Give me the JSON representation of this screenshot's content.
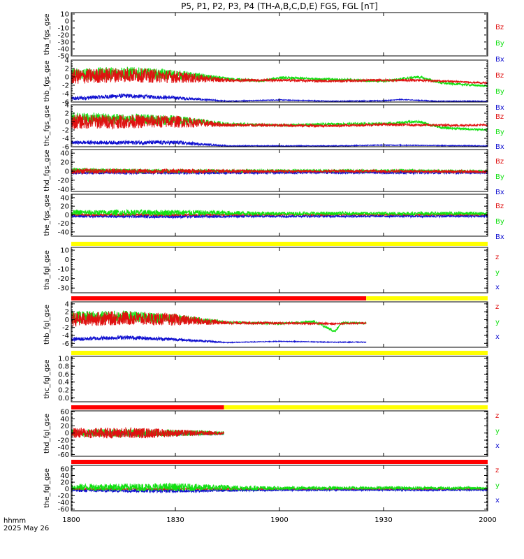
{
  "colors": {
    "x": "#1010d0",
    "y": "#10e010",
    "z": "#e01010",
    "bar_red": "#ff0000",
    "bar_yellow": "#ffff00",
    "axis": "#000000"
  },
  "chart_data": {
    "type": "line",
    "title": "P5, P1, P2, P3, P4 (TH-A,B,C,D,E) FGS, FGL [nT]",
    "x_ticks": [
      "1800",
      "1830",
      "1900",
      "1930",
      "2000"
    ],
    "x_range_min": [
      0,
      120
    ],
    "footer": {
      "line1": "hhmm",
      "line2": "2025 May 26"
    },
    "panels": [
      {
        "id": "tha_fgs",
        "ylabel": "tha_fgs_gse",
        "yticks": [
          10,
          0,
          -10,
          -20,
          -30,
          -40,
          -50
        ],
        "ylim": [
          -50,
          12
        ],
        "legend": [
          "Bz",
          "By",
          "Bx"
        ],
        "note": "no data",
        "series": []
      },
      {
        "id": "thb_fgs",
        "ylabel": "thb_fgs_gse",
        "yticks": [
          4,
          2,
          0,
          -2,
          -4,
          -6
        ],
        "ylim": [
          -6,
          4
        ],
        "legend": [
          "Bz",
          "By",
          "Bx"
        ],
        "series": [
          {
            "comp": "x",
            "samples": [
              [
                0,
                -5.2
              ],
              [
                15,
                -4.5
              ],
              [
                30,
                -5.0
              ],
              [
                45,
                -5.8
              ],
              [
                60,
                -5.5
              ],
              [
                75,
                -5.8
              ],
              [
                90,
                -5.7
              ],
              [
                95,
                -5.4
              ],
              [
                105,
                -5.8
              ],
              [
                120,
                -5.8
              ]
            ],
            "noise": [
              0.5,
              0.5,
              0.4,
              0.1,
              0.1,
              0.1,
              0.1,
              0.1,
              0.1,
              0.1
            ]
          },
          {
            "comp": "y",
            "samples": [
              [
                0,
                0.5
              ],
              [
                15,
                1.0
              ],
              [
                30,
                0.5
              ],
              [
                45,
                -0.5
              ],
              [
                55,
                -1.0
              ],
              [
                60,
                -0.2
              ],
              [
                75,
                -0.6
              ],
              [
                90,
                -1.0
              ],
              [
                100,
                0.0
              ],
              [
                107,
                -1.5
              ],
              [
                120,
                -2.2
              ]
            ],
            "noise": [
              1.5,
              1.5,
              1.2,
              0.4,
              0.3,
              0.3,
              0.3,
              0.3,
              0.3,
              0.3,
              0.2
            ]
          },
          {
            "comp": "z",
            "samples": [
              [
                0,
                0.0
              ],
              [
                15,
                0.5
              ],
              [
                30,
                0.0
              ],
              [
                45,
                -0.8
              ],
              [
                60,
                -0.8
              ],
              [
                75,
                -1.0
              ],
              [
                90,
                -0.8
              ],
              [
                100,
                -0.8
              ],
              [
                110,
                -1.1
              ],
              [
                120,
                -1.5
              ]
            ],
            "noise": [
              1.8,
              1.8,
              1.5,
              0.4,
              0.3,
              0.3,
              0.3,
              0.3,
              0.2,
              0.2
            ]
          }
        ]
      },
      {
        "id": "thc_fgs",
        "ylabel": "thc_fgs_gse",
        "yticks": [
          4,
          2,
          0,
          -2,
          -4,
          -6
        ],
        "ylim": [
          -6,
          4
        ],
        "legend": [
          "Bz",
          "By",
          "Bx"
        ],
        "series": [
          {
            "comp": "x",
            "samples": [
              [
                0,
                -5.0
              ],
              [
                30,
                -5.0
              ],
              [
                45,
                -5.8
              ],
              [
                75,
                -5.8
              ],
              [
                90,
                -5.6
              ],
              [
                120,
                -5.8
              ]
            ],
            "noise": [
              0.4,
              0.5,
              0.1,
              0.1,
              0.1,
              0.1
            ]
          },
          {
            "comp": "y",
            "samples": [
              [
                0,
                0.8
              ],
              [
                30,
                0.3
              ],
              [
                45,
                -0.6
              ],
              [
                60,
                -0.9
              ],
              [
                75,
                -0.6
              ],
              [
                90,
                -0.5
              ],
              [
                100,
                0.0
              ],
              [
                107,
                -1.5
              ],
              [
                120,
                -2.0
              ]
            ],
            "noise": [
              1.5,
              1.2,
              0.4,
              0.3,
              0.3,
              0.3,
              0.3,
              0.3,
              0.2
            ]
          },
          {
            "comp": "z",
            "samples": [
              [
                0,
                0.0
              ],
              [
                30,
                0.0
              ],
              [
                45,
                -0.8
              ],
              [
                75,
                -1.0
              ],
              [
                90,
                -0.7
              ],
              [
                110,
                -0.9
              ],
              [
                120,
                -0.8
              ]
            ],
            "noise": [
              1.8,
              1.5,
              0.4,
              0.3,
              0.3,
              0.3,
              0.2
            ]
          }
        ]
      },
      {
        "id": "thd_fgs",
        "ylabel": "thd_fgs_gse",
        "yticks": [
          40,
          20,
          0,
          -20,
          -40
        ],
        "ylim": [
          -45,
          48
        ],
        "legend": [
          "Bz",
          "By",
          "Bx"
        ],
        "series": [
          {
            "comp": "x",
            "samples": [
              [
                0,
                -3
              ],
              [
                30,
                -3
              ],
              [
                60,
                -3
              ],
              [
                90,
                -3
              ],
              [
                120,
                -3
              ]
            ],
            "noise": [
              4,
              4,
              3,
              3,
              3
            ]
          },
          {
            "comp": "y",
            "samples": [
              [
                0,
                2
              ],
              [
                30,
                0
              ],
              [
                60,
                1
              ],
              [
                90,
                1
              ],
              [
                120,
                0
              ]
            ],
            "noise": [
              5,
              4,
              3,
              3,
              3
            ]
          },
          {
            "comp": "z",
            "samples": [
              [
                0,
                0
              ],
              [
                30,
                0
              ],
              [
                60,
                0
              ],
              [
                90,
                0
              ],
              [
                120,
                -1
              ]
            ],
            "noise": [
              6,
              5,
              3,
              3,
              3
            ]
          }
        ]
      },
      {
        "id": "the_fgs",
        "ylabel": "the_fgs_gse",
        "yticks": [
          40,
          20,
          0,
          -20,
          -40
        ],
        "ylim": [
          -50,
          48
        ],
        "legend": [
          "Bz",
          "By",
          "Bx"
        ],
        "series": [
          {
            "comp": "x",
            "samples": [
              [
                0,
                -3
              ],
              [
                30,
                -4
              ],
              [
                60,
                -3
              ],
              [
                90,
                -3
              ],
              [
                120,
                -3
              ]
            ],
            "noise": [
              3,
              4,
              3,
              3,
              3
            ]
          },
          {
            "comp": "z",
            "samples": [
              [
                0,
                0
              ],
              [
                30,
                0
              ],
              [
                60,
                0
              ],
              [
                90,
                0
              ],
              [
                120,
                0
              ]
            ],
            "noise": [
              2,
              2,
              1,
              1,
              1
            ]
          },
          {
            "comp": "y",
            "samples": [
              [
                0,
                5
              ],
              [
                30,
                5
              ],
              [
                60,
                3
              ],
              [
                90,
                3
              ],
              [
                120,
                3
              ]
            ],
            "noise": [
              6,
              7,
              4,
              4,
              4
            ]
          }
        ]
      },
      {
        "id": "tha_fgl",
        "ylabel": "tha_fgl_gse",
        "yticks": [
          10,
          0,
          -10,
          -20,
          -30
        ],
        "ylim": [
          -35,
          13
        ],
        "legend": [
          "z",
          "y",
          "x"
        ],
        "note": "no data",
        "bar": [
          [
            "yellow",
            0,
            120
          ]
        ],
        "series": []
      },
      {
        "id": "thb_fgl",
        "ylabel": "thb_fgl_gse",
        "yticks": [
          4,
          2,
          0,
          -2,
          -4,
          -6
        ],
        "ylim": [
          -7,
          4.5
        ],
        "legend": [
          "z",
          "y",
          "x"
        ],
        "bar": [
          [
            "red",
            0,
            85
          ],
          [
            "yellow",
            85,
            120
          ]
        ],
        "series": [
          {
            "comp": "x",
            "samples": [
              [
                0,
                -5.0
              ],
              [
                15,
                -4.5
              ],
              [
                30,
                -5.0
              ],
              [
                45,
                -5.8
              ],
              [
                60,
                -5.5
              ],
              [
                75,
                -5.7
              ],
              [
                85,
                -5.7
              ]
            ],
            "noise": [
              0.5,
              0.5,
              0.4,
              0.1,
              0.1,
              0.1,
              0.1
            ]
          },
          {
            "comp": "y",
            "samples": [
              [
                0,
                0.6
              ],
              [
                15,
                0.8
              ],
              [
                30,
                0.3
              ],
              [
                45,
                -0.7
              ],
              [
                60,
                -1.0
              ],
              [
                70,
                -0.5
              ],
              [
                76,
                -3.0
              ],
              [
                78,
                -0.8
              ],
              [
                85,
                -0.9
              ]
            ],
            "noise": [
              1.5,
              1.5,
              1.2,
              0.3,
              0.3,
              0.3,
              0.3,
              0.3,
              0.2
            ]
          },
          {
            "comp": "z",
            "samples": [
              [
                0,
                0.0
              ],
              [
                15,
                0.4
              ],
              [
                30,
                0.0
              ],
              [
                45,
                -0.8
              ],
              [
                60,
                -0.9
              ],
              [
                75,
                -1.0
              ],
              [
                85,
                -0.9
              ]
            ],
            "noise": [
              1.8,
              1.8,
              1.5,
              0.4,
              0.3,
              0.3,
              0.2
            ]
          }
        ]
      },
      {
        "id": "thc_fgl",
        "ylabel": "thc_fgl_gse",
        "yticks": [
          1.0,
          0.8,
          0.6,
          0.4,
          0.2,
          0.0
        ],
        "ylim": [
          -0.1,
          1.05
        ],
        "legend": [],
        "note": "no data",
        "bar": [
          [
            "yellow",
            0,
            120
          ]
        ],
        "series": []
      },
      {
        "id": "thd_fgl",
        "ylabel": "thd_fgl_gse",
        "yticks": [
          60,
          40,
          20,
          0,
          -20,
          -40,
          -60
        ],
        "ylim": [
          -65,
          62
        ],
        "legend": [
          "z",
          "y",
          "x"
        ],
        "bar": [
          [
            "red",
            0,
            44
          ],
          [
            "yellow",
            44,
            120
          ]
        ],
        "series": [
          {
            "comp": "x",
            "samples": [
              [
                0,
                0
              ],
              [
                20,
                -2
              ],
              [
                44,
                -2
              ]
            ],
            "noise": [
              6,
              6,
              3
            ]
          },
          {
            "comp": "y",
            "samples": [
              [
                0,
                0
              ],
              [
                20,
                0
              ],
              [
                44,
                0
              ]
            ],
            "noise": [
              10,
              12,
              5
            ]
          },
          {
            "comp": "z",
            "samples": [
              [
                0,
                0
              ],
              [
                20,
                0
              ],
              [
                44,
                0
              ]
            ],
            "noise": [
              15,
              15,
              4
            ]
          }
        ]
      },
      {
        "id": "the_fgl",
        "ylabel": "the_fgl_gse",
        "yticks": [
          60,
          40,
          20,
          0,
          -20,
          -40,
          -60
        ],
        "ylim": [
          -65,
          70
        ],
        "legend": [
          "z",
          "y",
          "x"
        ],
        "bar": [
          [
            "red",
            0,
            120
          ]
        ],
        "series": [
          {
            "comp": "x",
            "samples": [
              [
                0,
                -4
              ],
              [
                30,
                -5
              ],
              [
                60,
                -3
              ],
              [
                90,
                -3
              ],
              [
                120,
                -3
              ]
            ],
            "noise": [
              5,
              6,
              3,
              3,
              3
            ]
          },
          {
            "comp": "z",
            "samples": [
              [
                0,
                0
              ],
              [
                30,
                0
              ],
              [
                60,
                0
              ],
              [
                90,
                0
              ],
              [
                120,
                0
              ]
            ],
            "noise": [
              2,
              2,
              1,
              1,
              1
            ]
          },
          {
            "comp": "y",
            "samples": [
              [
                0,
                5
              ],
              [
                30,
                5
              ],
              [
                60,
                2
              ],
              [
                90,
                3
              ],
              [
                120,
                2
              ]
            ],
            "noise": [
              10,
              12,
              5,
              5,
              4
            ]
          }
        ]
      }
    ]
  }
}
